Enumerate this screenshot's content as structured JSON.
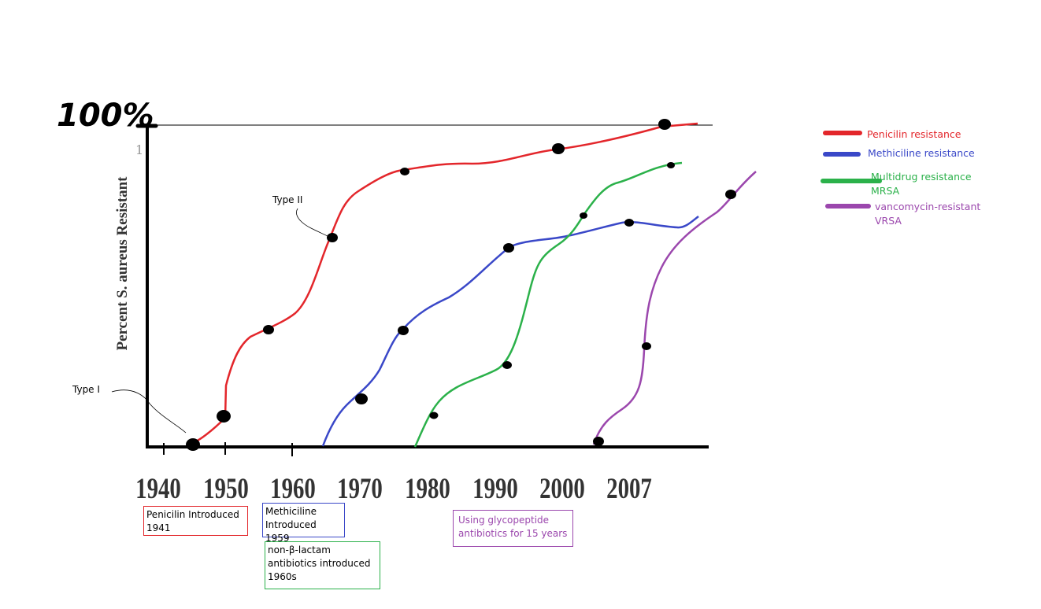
{
  "chart_data": {
    "type": "line",
    "title": "",
    "ylabel": "Percent S. aureus Resistant",
    "y_top_label": "100%",
    "y_tick_label": "1",
    "x_tick_labels": [
      "1940",
      "1950",
      "1960",
      "1970",
      "1980",
      "1990",
      "2000",
      "2007"
    ],
    "ylim": [
      0,
      100
    ],
    "legend_position": "right",
    "series": [
      {
        "name": "Penicilin resistance",
        "color": "#e3262b",
        "points": [
          [
            1945.3,
            0
          ],
          [
            1949.5,
            9
          ],
          [
            1956.5,
            36
          ],
          [
            1966.3,
            65
          ],
          [
            1976.3,
            86
          ],
          [
            1996.3,
            94
          ],
          [
            1994.8,
            96.2
          ]
        ],
        "markers": [
          [
            1945.3,
            0
          ],
          [
            1949.5,
            9
          ],
          [
            1956.5,
            36
          ],
          [
            1966.3,
            65
          ],
          [
            1975.7,
            86
          ],
          [
            1996.3,
            94
          ],
          [
            1994.5,
            96
          ]
        ]
      },
      {
        "name": "Methiciline resistance",
        "color": "#3a48c8",
        "markers": [
          [
            1971.0,
            15
          ],
          [
            1976.5,
            36
          ],
          [
            1990.5,
            62
          ],
          [
            2003.5,
            70.5
          ]
        ]
      },
      {
        "name": "Multidrug resistance\nMRSA",
        "color": "#2bb14a",
        "markers": [
          [
            1984.0,
            10
          ],
          [
            1990.0,
            25
          ],
          [
            2002.0,
            72.5
          ],
          [
            2009.5,
            88
          ]
        ]
      },
      {
        "name": "vancomycin-resistant\nVRSA",
        "color": "#9b47ad",
        "markers": [
          [
            2007.5,
            0
          ],
          [
            2011.5,
            31.5
          ],
          [
            2020.0,
            78.5
          ]
        ]
      }
    ],
    "annotations": [
      "Type I",
      "Type II"
    ]
  },
  "notes": {
    "penicilin": "Penicilin Introduced\n1941",
    "methiciline": "Methiciline\nIntroduced 1959",
    "non_beta_lactam": "non-β-lactam\nantibiotics introduced\n1960s",
    "glycopeptide": "Using glycopeptide\nantibiotics for 15 years"
  },
  "colors": {
    "axis": "#000000",
    "red": "#e3262b",
    "blue": "#3a48c8",
    "green": "#2bb14a",
    "purple": "#9b47ad"
  }
}
